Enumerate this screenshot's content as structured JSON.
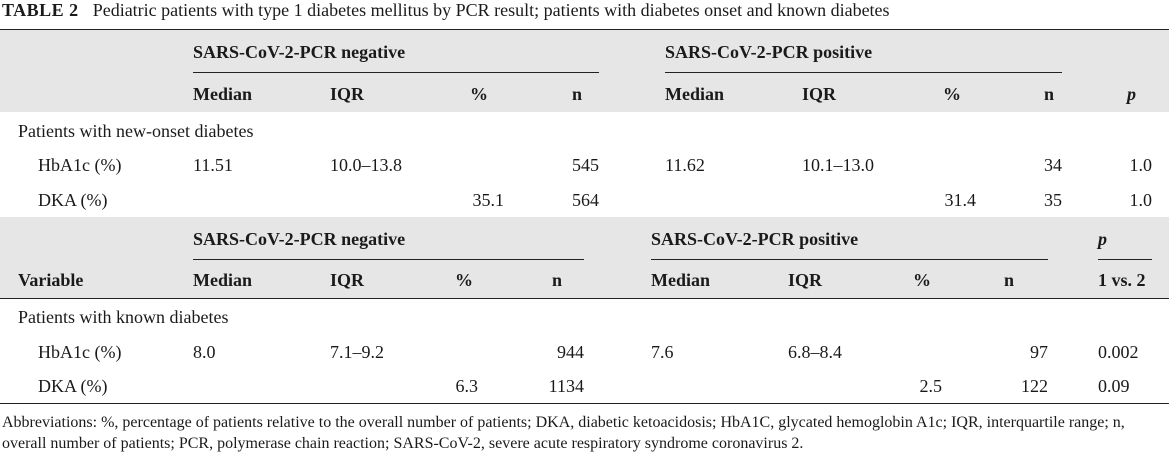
{
  "table": {
    "label": "TABLE 2",
    "caption": "Pediatric patients with type 1 diabetes mellitus by PCR result; patients with diabetes onset and known diabetes"
  },
  "section1": {
    "group_negative": "SARS-CoV-2-PCR negative",
    "group_positive": "SARS-CoV-2-PCR positive",
    "columns": {
      "median": "Median",
      "iqr": "IQR",
      "pct": "%",
      "n": "n",
      "p": "p"
    },
    "subheading": "Patients with new-onset diabetes",
    "rows": [
      {
        "variable": "HbA1c (%)",
        "neg_median": "11.51",
        "neg_iqr": "10.0–13.8",
        "neg_pct": "",
        "neg_n": "545",
        "pos_median": "11.62",
        "pos_iqr": "10.1–13.0",
        "pos_pct": "",
        "pos_n": "34",
        "p": "1.0"
      },
      {
        "variable": "DKA (%)",
        "neg_median": "",
        "neg_iqr": "",
        "neg_pct": "35.1",
        "neg_n": "564",
        "pos_median": "",
        "pos_iqr": "",
        "pos_pct": "31.4",
        "pos_n": "35",
        "p": "1.0"
      }
    ]
  },
  "section2": {
    "group_negative": "SARS-CoV-2-PCR negative",
    "group_positive": "SARS-CoV-2-PCR positive",
    "p_header": "p",
    "columns": {
      "variable": "Variable",
      "median": "Median",
      "iqr": "IQR",
      "pct": "%",
      "n": "n",
      "comparison": "1 vs. 2"
    },
    "subheading": "Patients with known diabetes",
    "rows": [
      {
        "variable": "HbA1c (%)",
        "neg_median": "8.0",
        "neg_iqr": "7.1–9.2",
        "neg_pct": "",
        "neg_n": "944",
        "pos_median": "7.6",
        "pos_iqr": "6.8–8.4",
        "pos_pct": "",
        "pos_n": "97",
        "p": "0.002"
      },
      {
        "variable": "DKA (%)",
        "neg_median": "",
        "neg_iqr": "",
        "neg_pct": "6.3",
        "neg_n": "1134",
        "pos_median": "",
        "pos_iqr": "",
        "pos_pct": "2.5",
        "pos_n": "122",
        "p": "0.09"
      }
    ]
  },
  "footnote": "Abbreviations: %, percentage of patients relative to the overall number of patients; DKA, diabetic ketoacidosis; HbA1C, glycated hemoglobin A1c; IQR, interquartile range; n, overall number of patients; PCR, polymerase chain reaction; SARS-CoV-2, severe acute respiratory syndrome coronavirus 2."
}
